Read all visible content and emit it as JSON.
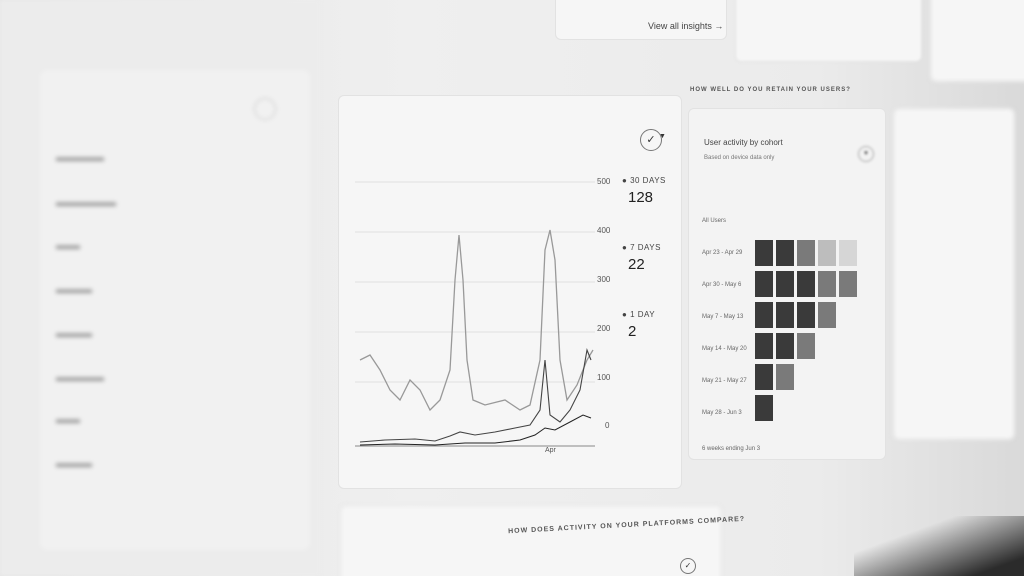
{
  "top": {
    "view_all_insights": "View all insights",
    "arrow": "→"
  },
  "activity_section": {
    "heading": "",
    "card_title": ""
  },
  "legend": [
    {
      "label": "30 DAYS",
      "value": "128"
    },
    {
      "label": "7 DAYS",
      "value": "22"
    },
    {
      "label": "1 DAY",
      "value": "2"
    }
  ],
  "y_ticks": [
    "500",
    "400",
    "300",
    "200",
    "100",
    "0"
  ],
  "x_ticks": [
    "",
    "",
    "",
    "",
    "Apr"
  ],
  "retention": {
    "heading": "HOW WELL DO YOU RETAIN YOUR USERS?",
    "card_title": "User activity by cohort",
    "subtitle": "Based on device data only",
    "all_users_label": "All Users",
    "rows": [
      "Apr 23 - Apr 29",
      "Apr 30 - May 6",
      "May 7 - May 13",
      "May 14 - May 20",
      "May 21 - May 27",
      "May 28 - Jun 3"
    ],
    "footer": "6 weeks ending Jun 3"
  },
  "platforms": {
    "heading": "HOW DOES ACTIVITY ON YOUR PLATFORMS COMPARE?"
  },
  "colors": {
    "cell_dark": "#3a3a3a",
    "cell_mid": "#7a7a7a",
    "cell_light": "#bdbdbd",
    "cell_pale": "#d6d6d6"
  },
  "icons": [
    "check-circle-icon",
    "chevron-down-icon",
    "arrow-right-icon"
  ]
}
